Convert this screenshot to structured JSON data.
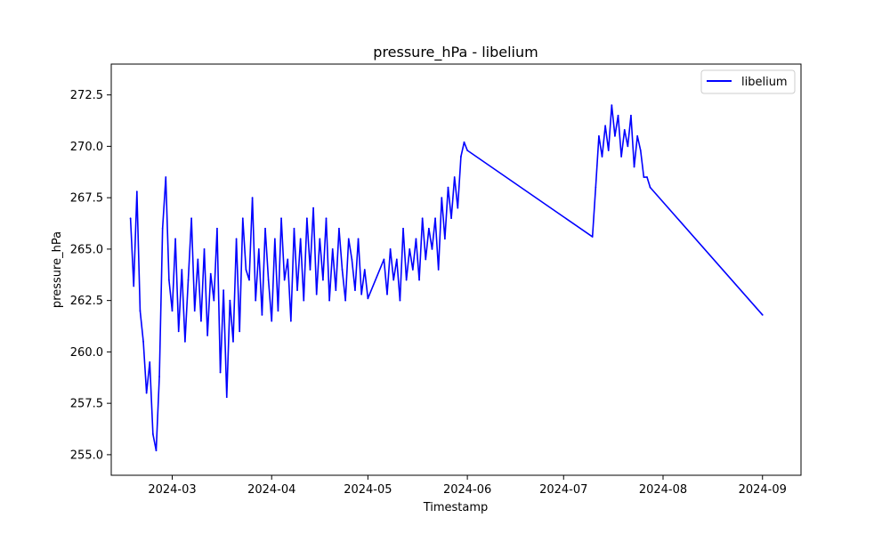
{
  "chart_data": {
    "type": "line",
    "title": "pressure_hPa - libelium",
    "xlabel": "Timestamp",
    "ylabel": "pressure_hPa",
    "xlim": [
      "2024-02-11",
      "2024-09-13"
    ],
    "ylim": [
      254.0,
      274.0
    ],
    "x_ticks": [
      "2024-03-01",
      "2024-04-01",
      "2024-05-01",
      "2024-06-01",
      "2024-07-01",
      "2024-08-01",
      "2024-09-01"
    ],
    "x_tick_labels": [
      "2024-03",
      "2024-04",
      "2024-05",
      "2024-06",
      "2024-07",
      "2024-08",
      "2024-09"
    ],
    "y_ticks": [
      255.0,
      257.5,
      260.0,
      262.5,
      265.0,
      267.5,
      270.0,
      272.5
    ],
    "y_tick_labels": [
      "255.0",
      "257.5",
      "260.0",
      "262.5",
      "265.0",
      "267.5",
      "270.0",
      "272.5"
    ],
    "grid": false,
    "legend": {
      "position": "top-right",
      "entries": [
        "libelium"
      ]
    },
    "colors": {
      "libelium": "#0000ff"
    },
    "series": [
      {
        "name": "libelium",
        "x": [
          "2024-02-17",
          "2024-02-18",
          "2024-02-19",
          "2024-02-20",
          "2024-02-21",
          "2024-02-22",
          "2024-02-23",
          "2024-02-24",
          "2024-02-25",
          "2024-02-26",
          "2024-02-27",
          "2024-02-28",
          "2024-02-29",
          "2024-03-01",
          "2024-03-02",
          "2024-03-03",
          "2024-03-04",
          "2024-03-05",
          "2024-03-06",
          "2024-03-07",
          "2024-03-08",
          "2024-03-09",
          "2024-03-10",
          "2024-03-11",
          "2024-03-12",
          "2024-03-13",
          "2024-03-14",
          "2024-03-15",
          "2024-03-16",
          "2024-03-17",
          "2024-03-18",
          "2024-03-19",
          "2024-03-20",
          "2024-03-21",
          "2024-03-22",
          "2024-03-23",
          "2024-03-24",
          "2024-03-25",
          "2024-03-26",
          "2024-03-27",
          "2024-03-28",
          "2024-03-29",
          "2024-03-30",
          "2024-03-31",
          "2024-04-01",
          "2024-04-02",
          "2024-04-03",
          "2024-04-04",
          "2024-04-05",
          "2024-04-06",
          "2024-04-07",
          "2024-04-08",
          "2024-04-09",
          "2024-04-10",
          "2024-04-11",
          "2024-04-12",
          "2024-04-13",
          "2024-04-14",
          "2024-04-15",
          "2024-04-16",
          "2024-04-17",
          "2024-04-18",
          "2024-04-19",
          "2024-04-20",
          "2024-04-21",
          "2024-04-22",
          "2024-04-23",
          "2024-04-24",
          "2024-04-25",
          "2024-04-26",
          "2024-04-27",
          "2024-04-28",
          "2024-04-29",
          "2024-04-30",
          "2024-05-01",
          "2024-05-06",
          "2024-05-07",
          "2024-05-08",
          "2024-05-09",
          "2024-05-10",
          "2024-05-11",
          "2024-05-12",
          "2024-05-13",
          "2024-05-14",
          "2024-05-15",
          "2024-05-16",
          "2024-05-17",
          "2024-05-18",
          "2024-05-19",
          "2024-05-20",
          "2024-05-21",
          "2024-05-22",
          "2024-05-23",
          "2024-05-24",
          "2024-05-25",
          "2024-05-26",
          "2024-05-27",
          "2024-05-28",
          "2024-05-29",
          "2024-05-30",
          "2024-05-31",
          "2024-06-01",
          "2024-07-10",
          "2024-07-11",
          "2024-07-12",
          "2024-07-13",
          "2024-07-14",
          "2024-07-15",
          "2024-07-16",
          "2024-07-17",
          "2024-07-18",
          "2024-07-19",
          "2024-07-20",
          "2024-07-21",
          "2024-07-22",
          "2024-07-23",
          "2024-07-24",
          "2024-07-25",
          "2024-07-26",
          "2024-07-27",
          "2024-07-28",
          "2024-09-01"
        ],
        "y": [
          266.5,
          263.2,
          267.8,
          262.0,
          260.5,
          258.0,
          259.5,
          256.0,
          255.2,
          258.8,
          266.0,
          268.5,
          263.5,
          262.0,
          265.5,
          261.0,
          264.0,
          260.5,
          263.5,
          266.5,
          262.0,
          264.5,
          261.5,
          265.0,
          260.8,
          263.8,
          262.5,
          266.0,
          259.0,
          263.0,
          257.8,
          262.5,
          260.5,
          265.5,
          261.0,
          266.5,
          264.0,
          263.5,
          267.5,
          262.5,
          265.0,
          261.8,
          266.0,
          263.5,
          261.5,
          265.5,
          262.0,
          266.5,
          263.5,
          264.5,
          261.5,
          266.0,
          263.0,
          265.5,
          262.5,
          266.5,
          264.0,
          267.0,
          262.8,
          265.5,
          263.5,
          266.5,
          262.5,
          265.0,
          263.0,
          266.0,
          264.0,
          262.5,
          265.5,
          264.5,
          263.0,
          265.5,
          262.8,
          264.0,
          262.6,
          264.5,
          262.8,
          265.0,
          263.5,
          264.5,
          262.5,
          266.0,
          263.5,
          265.0,
          264.0,
          265.5,
          263.5,
          266.5,
          264.5,
          266.0,
          265.0,
          266.5,
          264.0,
          267.5,
          265.5,
          268.0,
          266.5,
          268.5,
          267.0,
          269.5,
          270.2,
          269.8,
          265.6,
          268.0,
          270.5,
          269.5,
          271.0,
          269.8,
          272.0,
          270.5,
          271.5,
          269.5,
          270.8,
          270.0,
          271.5,
          269.0,
          270.5,
          269.8,
          268.5,
          268.5,
          268.0,
          261.8
        ]
      }
    ]
  }
}
